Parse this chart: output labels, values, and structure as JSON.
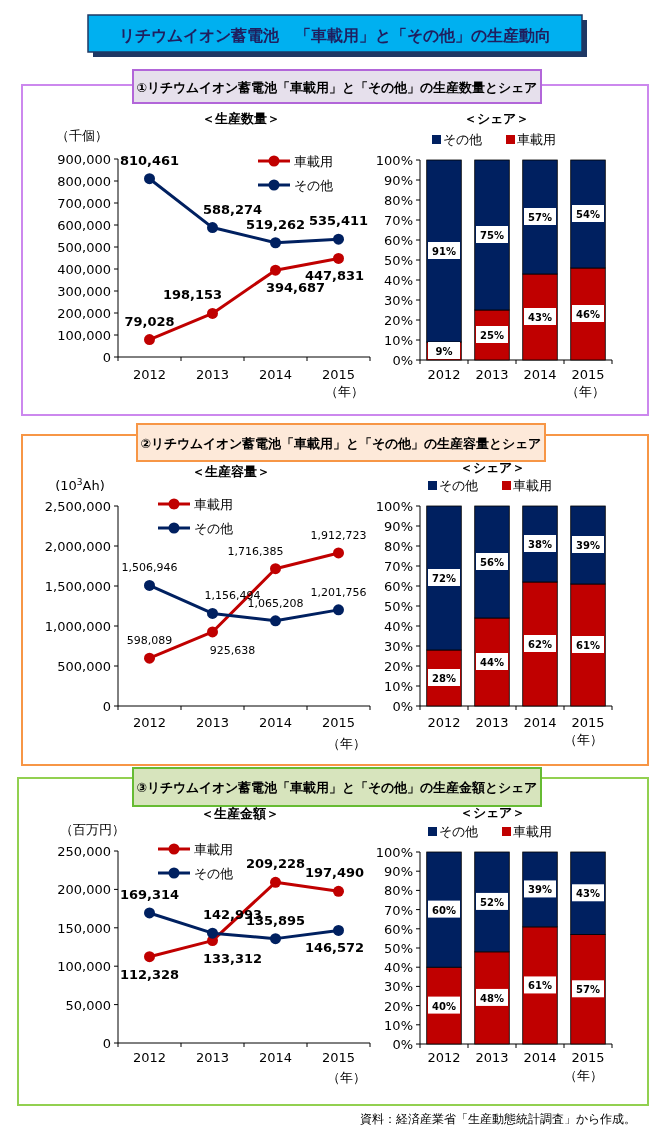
{
  "chart_data": [
    {
      "type": "other",
      "title": "リチウムイオン蓄電池　「車載用」と「その他」の生産動向"
    },
    {
      "type": "line",
      "title": "①リチウムイオン蓄電池「車載用」と「その他」の生産数量とシェア",
      "subtitle": "＜生産数量＞",
      "ylabel": "（千個）",
      "xlabel": "（年）",
      "categories": [
        "2012",
        "2013",
        "2014",
        "2015"
      ],
      "legend": "top right",
      "marker": "circle",
      "series": [
        {
          "name": "車載用",
          "color": "#c00000",
          "values": [
            79028,
            198153,
            394687,
            447831
          ],
          "value_labels": [
            "79,028",
            "198,153",
            "394,687",
            "447,831"
          ]
        },
        {
          "name": "その他",
          "color": "#002060",
          "values": [
            810461,
            588274,
            519262,
            535411
          ],
          "value_labels": [
            "810,461",
            "588,274",
            "519,262",
            "535,411"
          ]
        }
      ],
      "ylim": [
        0,
        900000
      ],
      "yticks": [
        {
          "value": 0,
          "label": "0"
        },
        {
          "value": 100000,
          "label": "100,000"
        },
        {
          "value": 200000,
          "label": "200,000"
        },
        {
          "value": 300000,
          "label": "300,000"
        },
        {
          "value": 400000,
          "label": "400,000"
        },
        {
          "value": 500000,
          "label": "500,000"
        },
        {
          "value": 600000,
          "label": "600,000"
        },
        {
          "value": 700000,
          "label": "700,000"
        },
        {
          "value": 800000,
          "label": "800,000"
        },
        {
          "value": 900000,
          "label": "900,000"
        }
      ]
    },
    {
      "type": "bar",
      "stacked": true,
      "subtitle": "＜シェア＞",
      "xlabel": "（年）",
      "categories": [
        "2012",
        "2013",
        "2014",
        "2015"
      ],
      "legend": "top",
      "series": [
        {
          "name": "車載用",
          "color": "#c00000",
          "values": [
            9,
            25,
            43,
            46
          ],
          "value_labels": [
            "9%",
            "25%",
            "43%",
            "46%"
          ]
        },
        {
          "name": "その他",
          "color": "#002060",
          "values": [
            91,
            75,
            57,
            54
          ],
          "value_labels": [
            "91%",
            "75%",
            "57%",
            "54%"
          ]
        }
      ],
      "ylim": [
        0,
        100
      ],
      "yticks": [
        {
          "value": 0,
          "label": "0%"
        },
        {
          "value": 10,
          "label": "10%"
        },
        {
          "value": 20,
          "label": "20%"
        },
        {
          "value": 30,
          "label": "30%"
        },
        {
          "value": 40,
          "label": "40%"
        },
        {
          "value": 50,
          "label": "50%"
        },
        {
          "value": 60,
          "label": "60%"
        },
        {
          "value": 70,
          "label": "70%"
        },
        {
          "value": 80,
          "label": "80%"
        },
        {
          "value": 90,
          "label": "90%"
        },
        {
          "value": 100,
          "label": "100%"
        }
      ]
    },
    {
      "type": "line",
      "title": "②リチウムイオン蓄電池「車載用」と「その他」の生産容量とシェア",
      "subtitle": "＜生産容量＞",
      "ylabel": "(10$^{3}$Ah)",
      "xlabel": "（年）",
      "categories": [
        "2012",
        "2013",
        "2014",
        "2015"
      ],
      "legend": "top left",
      "marker": "circle",
      "series": [
        {
          "name": "車載用",
          "color": "#c00000",
          "values": [
            598089,
            925638,
            1716385,
            1912723
          ],
          "value_labels": [
            "598,089",
            "925,638",
            "1,716,385",
            "1,912,723"
          ]
        },
        {
          "name": "その他",
          "color": "#002060",
          "values": [
            1506946,
            1156494,
            1065208,
            1201756
          ],
          "value_labels": [
            "1,506,946",
            "1,156,494",
            "1,065,208",
            "1,201,756"
          ]
        }
      ],
      "ylim": [
        0,
        2500000
      ],
      "yticks": [
        {
          "value": 0,
          "label": "0"
        },
        {
          "value": 500000,
          "label": "500,000"
        },
        {
          "value": 1000000,
          "label": "1,000,000"
        },
        {
          "value": 1500000,
          "label": "1,500,000"
        },
        {
          "value": 2000000,
          "label": "2,000,000"
        },
        {
          "value": 2500000,
          "label": "2,500,000"
        }
      ]
    },
    {
      "type": "bar",
      "stacked": true,
      "subtitle": "＜シェア＞",
      "xlabel": "（年）",
      "categories": [
        "2012",
        "2013",
        "2014",
        "2015"
      ],
      "legend": "top",
      "series": [
        {
          "name": "車載用",
          "color": "#c00000",
          "values": [
            28,
            44,
            62,
            61
          ],
          "value_labels": [
            "28%",
            "44%",
            "62%",
            "61%"
          ]
        },
        {
          "name": "その他",
          "color": "#002060",
          "values": [
            72,
            56,
            38,
            39
          ],
          "value_labels": [
            "72%",
            "56%",
            "38%",
            "39%"
          ]
        }
      ],
      "ylim": [
        0,
        100
      ],
      "yticks": [
        {
          "value": 0,
          "label": "0%"
        },
        {
          "value": 10,
          "label": "10%"
        },
        {
          "value": 20,
          "label": "20%"
        },
        {
          "value": 30,
          "label": "30%"
        },
        {
          "value": 40,
          "label": "40%"
        },
        {
          "value": 50,
          "label": "50%"
        },
        {
          "value": 60,
          "label": "60%"
        },
        {
          "value": 70,
          "label": "70%"
        },
        {
          "value": 80,
          "label": "80%"
        },
        {
          "value": 90,
          "label": "90%"
        },
        {
          "value": 100,
          "label": "100%"
        }
      ]
    },
    {
      "type": "line",
      "title": "③リチウムイオン蓄電池「車載用」と「その他」の生産金額とシェア",
      "subtitle": "＜生産金額＞",
      "ylabel": "（百万円）",
      "xlabel": "（年）",
      "categories": [
        "2012",
        "2013",
        "2014",
        "2015"
      ],
      "legend": "top left",
      "marker": "circle",
      "series": [
        {
          "name": "車載用",
          "color": "#c00000",
          "values": [
            112328,
            133312,
            209228,
            197490
          ],
          "value_labels": [
            "112,328",
            "133,312",
            "209,228",
            "197,490"
          ]
        },
        {
          "name": "その他",
          "color": "#002060",
          "values": [
            169314,
            142993,
            135895,
            146572
          ],
          "value_labels": [
            "169,314",
            "142,993",
            "135,895",
            "146,572"
          ]
        }
      ],
      "ylim": [
        0,
        250000
      ],
      "yticks": [
        {
          "value": 0,
          "label": "0"
        },
        {
          "value": 50000,
          "label": "50,000"
        },
        {
          "value": 100000,
          "label": "100,000"
        },
        {
          "value": 150000,
          "label": "150,000"
        },
        {
          "value": 200000,
          "label": "200,000"
        },
        {
          "value": 250000,
          "label": "250,000"
        }
      ]
    },
    {
      "type": "bar",
      "stacked": true,
      "subtitle": "＜シェア＞",
      "xlabel": "（年）",
      "categories": [
        "2012",
        "2013",
        "2014",
        "2015"
      ],
      "legend": "top",
      "annotations": [
        "資料：経済産業省「生産動態統計調査」から作成。"
      ],
      "series": [
        {
          "name": "車載用",
          "color": "#c00000",
          "values": [
            40,
            48,
            61,
            57
          ],
          "value_labels": [
            "40%",
            "48%",
            "61%",
            "57%"
          ]
        },
        {
          "name": "その他",
          "color": "#002060",
          "values": [
            60,
            52,
            39,
            43
          ],
          "value_labels": [
            "60%",
            "52%",
            "39%",
            "43%"
          ]
        }
      ],
      "ylim": [
        0,
        100
      ],
      "yticks": [
        {
          "value": 0,
          "label": "0%"
        },
        {
          "value": 10,
          "label": "10%"
        },
        {
          "value": 20,
          "label": "20%"
        },
        {
          "value": 30,
          "label": "30%"
        },
        {
          "value": 40,
          "label": "40%"
        },
        {
          "value": 50,
          "label": "50%"
        },
        {
          "value": 60,
          "label": "60%"
        },
        {
          "value": 70,
          "label": "70%"
        },
        {
          "value": 80,
          "label": "80%"
        },
        {
          "value": 90,
          "label": "90%"
        },
        {
          "value": 100,
          "label": "100%"
        }
      ]
    }
  ]
}
